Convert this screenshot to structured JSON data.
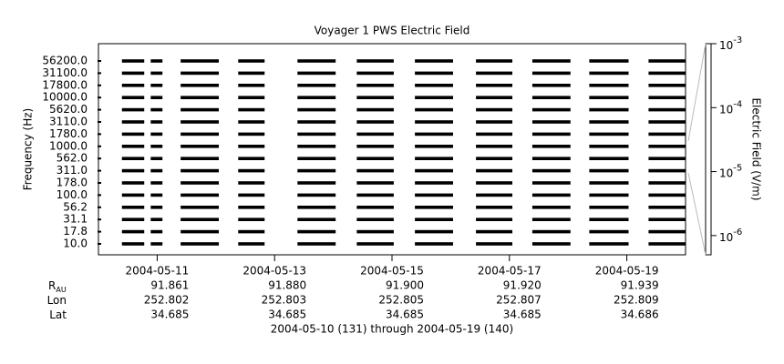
{
  "chart_data": {
    "type": "strip",
    "title": "Voyager 1 PWS Electric Field",
    "ylabel": "Frequency (Hz)",
    "categories": [
      "56200.0",
      "31100.0",
      "17800.0",
      "10000.0",
      "5620.0",
      "3110.0",
      "1780.0",
      "1000.0",
      "562.0",
      "311.0",
      "178.0",
      "100.0",
      "56.2",
      "31.1",
      "17.8",
      "10.0"
    ],
    "xlim": [
      10,
      20
    ],
    "xticks": [
      {
        "value": 11,
        "label": "2004-05-11"
      },
      {
        "value": 13,
        "label": "2004-05-13"
      },
      {
        "value": 15,
        "label": "2004-05-15"
      },
      {
        "value": 17,
        "label": "2004-05-17"
      },
      {
        "value": 19,
        "label": "2004-05-19"
      }
    ],
    "segments": [
      [
        10.4,
        10.78
      ],
      [
        10.89,
        11.09
      ],
      [
        11.4,
        12.05
      ],
      [
        12.38,
        12.83
      ],
      [
        13.39,
        14.04
      ],
      [
        14.4,
        15.03
      ],
      [
        15.39,
        16.04
      ],
      [
        16.43,
        17.05
      ],
      [
        17.39,
        18.04
      ],
      [
        18.36,
        19.03
      ],
      [
        19.37,
        20.0
      ]
    ],
    "color": "#000000",
    "y2label": "Electric Field (V/m)",
    "y2scale": "log",
    "y2lim": [
      5e-07,
      0.001
    ],
    "y2ticks": [
      {
        "value": 0.001,
        "label": "10",
        "sup": "-3"
      },
      {
        "value": 0.0001,
        "label": "10",
        "sup": "-4"
      },
      {
        "value": 1e-05,
        "label": "10",
        "sup": "-5"
      },
      {
        "value": 1e-06,
        "label": "10",
        "sup": "-6"
      }
    ],
    "ephemeris": [
      {
        "label": "R",
        "sub": "AU",
        "values": [
          "91.861",
          "91.880",
          "91.900",
          "91.920",
          "91.939"
        ]
      },
      {
        "label": "Lon",
        "values": [
          "252.802",
          "252.803",
          "252.805",
          "252.807",
          "252.809"
        ]
      },
      {
        "label": "Lat",
        "values": [
          "34.685",
          "34.685",
          "34.685",
          "34.685",
          "34.686"
        ]
      }
    ],
    "footer": "2004-05-10 (131) through 2004-05-19 (140)"
  }
}
